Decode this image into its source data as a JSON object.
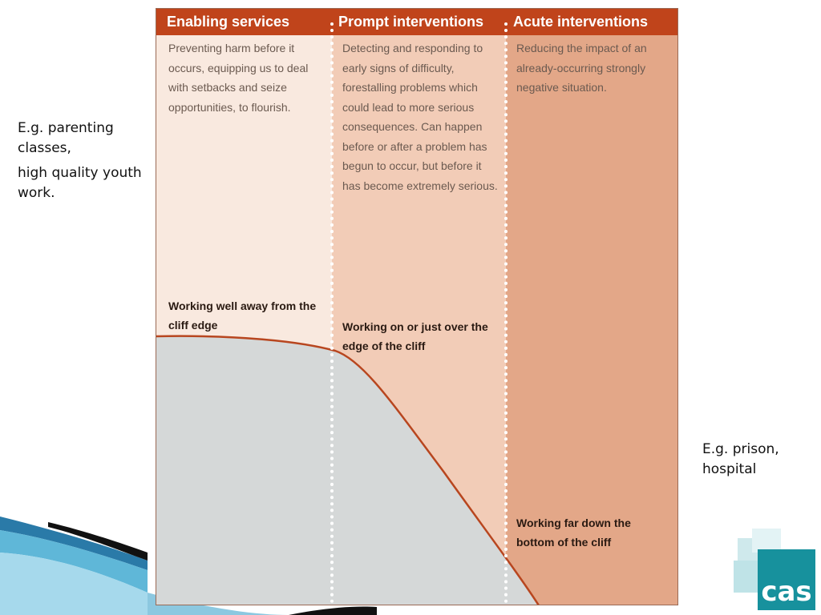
{
  "left_note": {
    "line1": "E.g. parenting classes,",
    "line2": "high quality youth work."
  },
  "right_note": {
    "text": "E.g. prison, hospital"
  },
  "columns": [
    {
      "header": "Enabling services",
      "description": "Preventing harm before it occurs, equipping us to deal with setbacks and seize opportunities, to flourish."
    },
    {
      "header": "Prompt interventions",
      "description": "Detecting and responding to early signs of difficulty, forestalling problems which could lead to more serious consequences. Can happen before or after a problem has begun to occur, but before it has become extremely serious."
    },
    {
      "header": "Acute interventions",
      "description": "Reducing the impact of an already-occurring strongly negative situation."
    }
  ],
  "cliff_labels": {
    "away": "Working well away from the cliff edge",
    "edge": "Working on or just over the edge of the cliff",
    "bottom": "Working far down the bottom of the cliff"
  },
  "logo": {
    "text": "cas",
    "color": "#17919d"
  },
  "colors": {
    "header_bar": "#c0441b",
    "column_enabling": "#f9e9df",
    "column_prompt": "#f2ccb7",
    "column_acute": "#e3a788",
    "cliff_fill": "#d5d8d8",
    "cliff_line": "#b8461f",
    "divider_dots": "#ffffff"
  }
}
